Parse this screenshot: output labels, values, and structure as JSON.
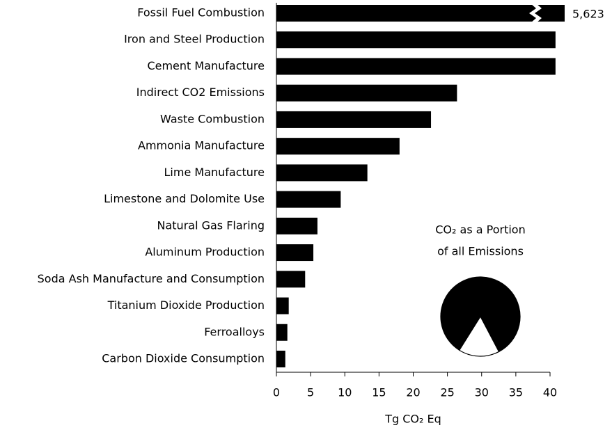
{
  "chart_data": [
    {
      "type": "bar",
      "orientation": "horizontal",
      "categories": [
        "Fossil Fuel Combustion",
        "Iron and Steel Production",
        "Cement Manufacture",
        "Indirect CO2 Emissions",
        "Waste Combustion",
        "Ammonia Manufacture",
        "Lime Manufacture",
        "Limestone and Dolomite Use",
        "Natural Gas Flaring",
        "Aluminum Production",
        "Soda Ash Manufacture and Consumption",
        "Titanium Dioxide Production",
        "Ferroalloys",
        "Carbon Dioxide Consumption"
      ],
      "values": [
        5623,
        40.8,
        40.8,
        26.4,
        22.6,
        18.0,
        13.3,
        9.4,
        6.0,
        5.4,
        4.2,
        1.8,
        1.6,
        1.3
      ],
      "value_labels": [
        "5,623",
        null,
        null,
        null,
        null,
        null,
        null,
        null,
        null,
        null,
        null,
        null,
        null,
        null
      ],
      "color": "#000000",
      "xlabel": "Tg CO₂ Eq",
      "xlim": [
        0,
        40
      ],
      "xticks": [
        0,
        5,
        10,
        15,
        20,
        25,
        30,
        35,
        40
      ],
      "grid": false
    },
    {
      "type": "pie",
      "title": [
        "CO₂ as a Portion",
        "of all Emissions"
      ],
      "values": [
        83.4,
        16.6
      ],
      "value_labels": [
        "83.4%",
        null
      ],
      "colors": [
        "#000000",
        "#ffffff"
      ]
    }
  ]
}
